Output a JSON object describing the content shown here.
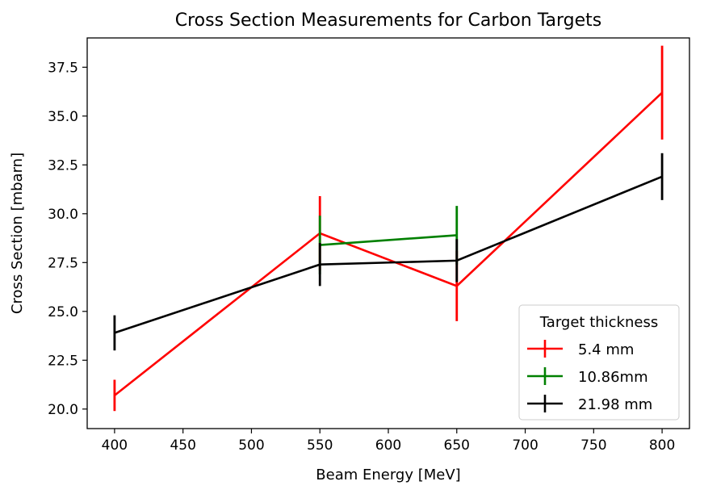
{
  "chart_data": {
    "type": "line",
    "title": "Cross Section Measurements for Carbon Targets",
    "xlabel": "Beam Energy [MeV]",
    "ylabel": "Cross Section [mbarn]",
    "xlim": [
      380,
      820
    ],
    "ylim": [
      19.0,
      39.0
    ],
    "xticks": [
      400,
      450,
      500,
      550,
      600,
      650,
      700,
      750,
      800
    ],
    "yticks": [
      20.0,
      22.5,
      25.0,
      27.5,
      30.0,
      32.5,
      35.0,
      37.5
    ],
    "xtick_labels": [
      "400",
      "450",
      "500",
      "550",
      "600",
      "650",
      "700",
      "750",
      "800"
    ],
    "ytick_labels": [
      "20.0",
      "22.5",
      "25.0",
      "27.5",
      "30.0",
      "32.5",
      "35.0",
      "37.5"
    ],
    "grid": false,
    "legend": {
      "title": "Target thickness",
      "placement": "lower-right"
    },
    "series": [
      {
        "name": "5.4 mm",
        "color": "#ff0000",
        "x": [
          400,
          550,
          650,
          800
        ],
        "y": [
          20.7,
          29.0,
          26.3,
          36.2
        ],
        "yerr": [
          0.8,
          1.9,
          1.8,
          2.4
        ]
      },
      {
        "name": "10.86mm",
        "color": "#008000",
        "x": [
          550,
          650
        ],
        "y": [
          28.4,
          28.9
        ],
        "yerr": [
          1.5,
          1.5
        ]
      },
      {
        "name": "21.98 mm",
        "color": "#000000",
        "x": [
          400,
          550,
          650,
          800
        ],
        "y": [
          23.9,
          27.4,
          27.6,
          31.9
        ],
        "yerr": [
          0.9,
          1.1,
          1.1,
          1.2
        ]
      }
    ]
  }
}
